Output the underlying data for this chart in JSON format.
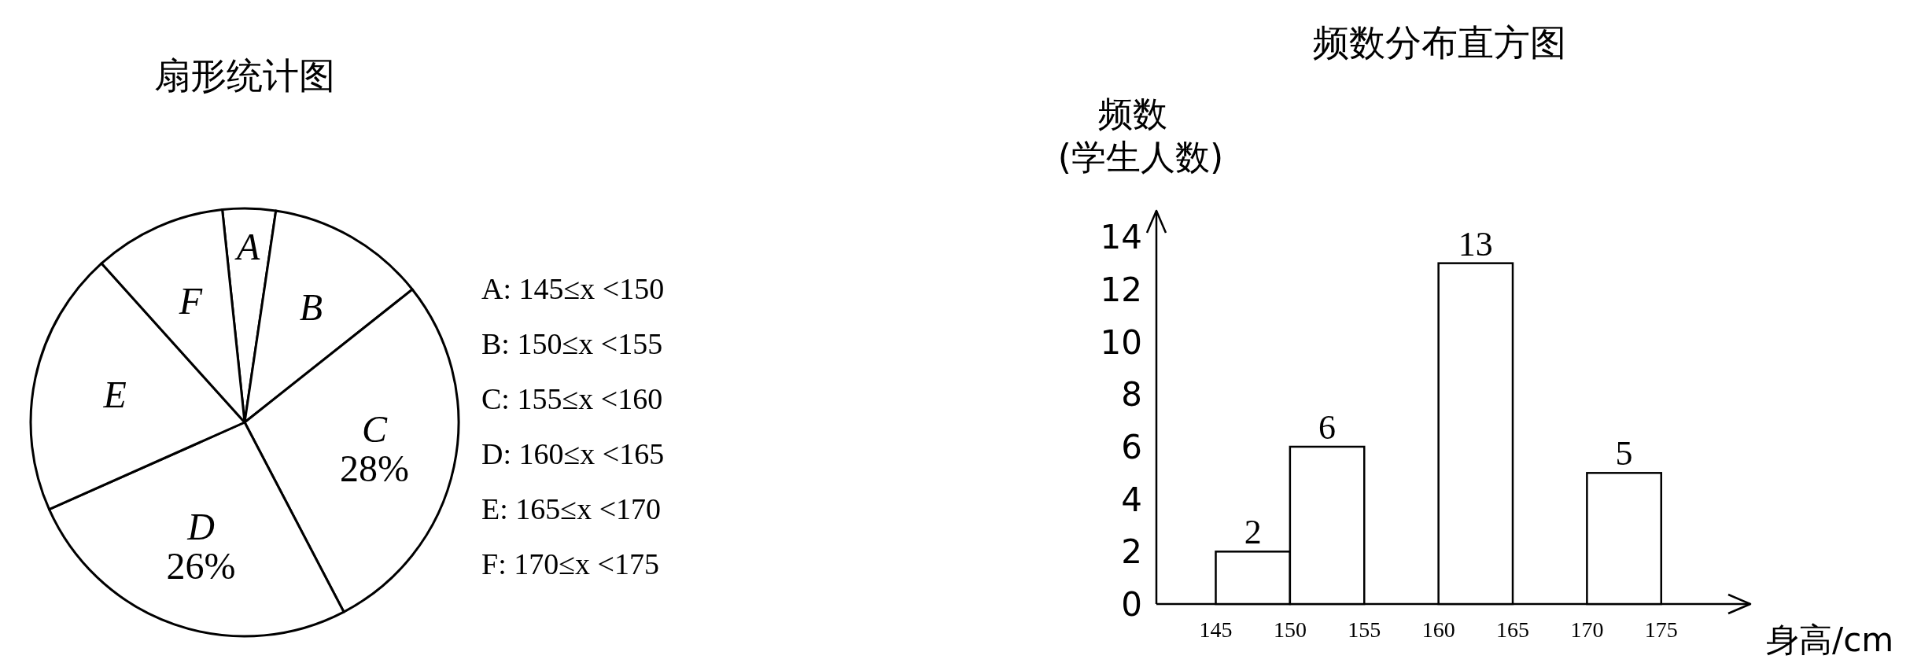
{
  "chart_data": [
    {
      "type": "pie",
      "title": "扇形统计图",
      "categories": [
        "A",
        "B",
        "C",
        "D",
        "E",
        "F"
      ],
      "values": [
        4,
        12,
        28,
        26,
        20,
        10
      ],
      "value_labels": [
        null,
        null,
        "28%",
        "26%",
        null,
        null
      ],
      "colors": [
        "#ffffff",
        "#ffffff",
        "#ffffff",
        "#ffffff",
        "#ffffff",
        "#ffffff"
      ],
      "annotations": [
        "A: 145≤x <150",
        "B: 150≤x <155",
        "C: 155≤x <160",
        "D: 160≤x <165",
        "E: 165≤x <170",
        "F: 170≤x <175"
      ]
    },
    {
      "type": "histogram",
      "title": "频数分布直方图",
      "ylabel": "频数\n(学生人数)",
      "xlabel": "身高/cm",
      "bins": [
        145,
        150,
        155,
        160,
        165,
        170,
        175
      ],
      "values": [
        2,
        6,
        null,
        13,
        null,
        5
      ],
      "data_labels": true,
      "color": "#ffffff",
      "xlim": [
        141,
        181
      ],
      "xticks": [
        145,
        150,
        155,
        160,
        165,
        170,
        175
      ],
      "ylim": [
        0,
        15
      ],
      "yticks": [
        0,
        2,
        4,
        6,
        8,
        10,
        12,
        14
      ]
    }
  ]
}
